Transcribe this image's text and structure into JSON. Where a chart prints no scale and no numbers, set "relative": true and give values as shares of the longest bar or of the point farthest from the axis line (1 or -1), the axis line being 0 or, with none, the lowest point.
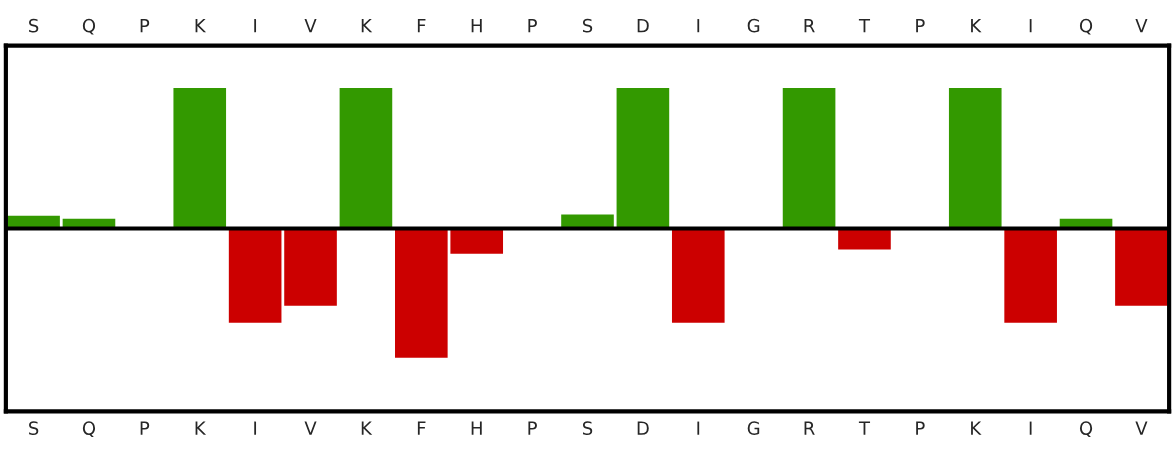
{
  "chart_data": {
    "type": "bar",
    "relative": true,
    "categories": [
      "S",
      "Q",
      "P",
      "K",
      "I",
      "V",
      "K",
      "F",
      "H",
      "P",
      "S",
      "D",
      "I",
      "G",
      "R",
      "T",
      "P",
      "K",
      "I",
      "Q",
      "V"
    ],
    "values": [
      0.09,
      0.07,
      0,
      1,
      -0.67,
      -0.55,
      1,
      -0.92,
      -0.18,
      0,
      0.1,
      1,
      -0.67,
      0,
      1,
      -0.15,
      0,
      1,
      -0.67,
      0.07,
      -0.55
    ],
    "colors": [
      "#339900",
      "#339900",
      "#339900",
      "#339900",
      "#cc0000",
      "#cc0000",
      "#339900",
      "#cc0000",
      "#cc0000",
      "#339900",
      "#339900",
      "#339900",
      "#cc0000",
      "#339900",
      "#339900",
      "#cc0000",
      "#339900",
      "#339900",
      "#cc0000",
      "#339900",
      "#cc0000"
    ],
    "grid": false,
    "legend": false
  }
}
